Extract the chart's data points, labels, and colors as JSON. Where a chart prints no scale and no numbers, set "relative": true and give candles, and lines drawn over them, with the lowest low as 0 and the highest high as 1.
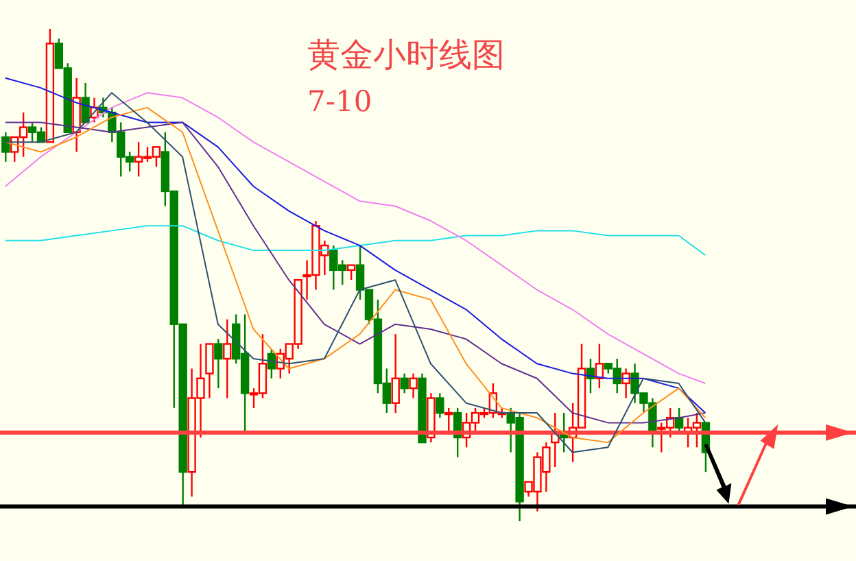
{
  "chart_data": {
    "type": "candlestick",
    "title": "黄金小时线图",
    "subtitle": "7-10",
    "relative": true,
    "categories": [
      null,
      null,
      null,
      null,
      null,
      null,
      null,
      null,
      null,
      null,
      null,
      null,
      null,
      null,
      null,
      null,
      null,
      null,
      null,
      null,
      null,
      null,
      null,
      null,
      null,
      null,
      null,
      null,
      null,
      null,
      null,
      null,
      null,
      null,
      null,
      null,
      null,
      null,
      null,
      null,
      null,
      null,
      null,
      null,
      null,
      null,
      null,
      null,
      null,
      null,
      null,
      null,
      null,
      null,
      null,
      null,
      null,
      null,
      null,
      null,
      null,
      null,
      null,
      null,
      null,
      null,
      null,
      null,
      null,
      null,
      null,
      null,
      null,
      null,
      null,
      null,
      null,
      null,
      null,
      null
    ],
    "ohlc": [
      [
        0.78,
        0.79,
        0.73,
        0.75
      ],
      [
        0.75,
        0.78,
        0.73,
        0.78
      ],
      [
        0.78,
        0.83,
        0.74,
        0.8
      ],
      [
        0.8,
        0.81,
        0.77,
        0.79
      ],
      [
        0.79,
        0.8,
        0.77,
        0.77
      ],
      [
        0.77,
        1.0,
        0.77,
        0.97
      ],
      [
        0.97,
        0.98,
        0.92,
        0.92
      ],
      [
        0.92,
        0.93,
        0.79,
        0.79
      ],
      [
        0.79,
        0.9,
        0.75,
        0.86
      ],
      [
        0.86,
        0.89,
        0.81,
        0.81
      ],
      [
        0.82,
        0.86,
        0.81,
        0.84
      ],
      [
        0.84,
        0.86,
        0.82,
        0.83
      ],
      [
        0.83,
        0.84,
        0.77,
        0.79
      ],
      [
        0.79,
        0.81,
        0.7,
        0.74
      ],
      [
        0.74,
        0.75,
        0.71,
        0.73
      ],
      [
        0.73,
        0.77,
        0.7,
        0.74
      ],
      [
        0.74,
        0.76,
        0.73,
        0.74
      ],
      [
        0.74,
        0.76,
        0.72,
        0.76
      ],
      [
        0.75,
        0.79,
        0.64,
        0.67
      ],
      [
        0.67,
        0.67,
        0.23,
        0.4
      ],
      [
        0.4,
        0.4,
        0.03,
        0.1
      ],
      [
        0.1,
        0.31,
        0.05,
        0.25
      ],
      [
        0.25,
        0.36,
        0.17,
        0.29
      ],
      [
        0.3,
        0.36,
        0.25,
        0.36
      ],
      [
        0.36,
        0.37,
        0.27,
        0.33
      ],
      [
        0.33,
        0.41,
        0.25,
        0.36
      ],
      [
        0.4,
        0.42,
        0.32,
        0.33
      ],
      [
        0.34,
        0.42,
        0.18,
        0.26
      ],
      [
        0.26,
        0.27,
        0.23,
        0.26
      ],
      [
        0.26,
        0.38,
        0.25,
        0.32
      ],
      [
        0.34,
        0.35,
        0.29,
        0.31
      ],
      [
        0.31,
        0.35,
        0.29,
        0.34
      ],
      [
        0.33,
        0.36,
        0.3,
        0.36
      ],
      [
        0.36,
        0.49,
        0.35,
        0.49
      ],
      [
        0.5,
        0.53,
        0.45,
        0.5
      ],
      [
        0.5,
        0.61,
        0.47,
        0.6
      ],
      [
        0.54,
        0.57,
        0.5,
        0.56
      ],
      [
        0.55,
        0.56,
        0.47,
        0.51
      ],
      [
        0.52,
        0.53,
        0.48,
        0.51
      ],
      [
        0.51,
        0.52,
        0.49,
        0.52
      ],
      [
        0.52,
        0.56,
        0.45,
        0.47
      ],
      [
        0.47,
        0.47,
        0.4,
        0.41
      ],
      [
        0.41,
        0.45,
        0.26,
        0.28
      ],
      [
        0.28,
        0.31,
        0.22,
        0.24
      ],
      [
        0.24,
        0.38,
        0.22,
        0.29
      ],
      [
        0.29,
        0.3,
        0.26,
        0.27
      ],
      [
        0.27,
        0.3,
        0.25,
        0.29
      ],
      [
        0.29,
        0.3,
        0.16,
        0.16
      ],
      [
        0.17,
        0.26,
        0.16,
        0.25
      ],
      [
        0.25,
        0.26,
        0.21,
        0.22
      ],
      [
        0.22,
        0.23,
        0.18,
        0.22
      ],
      [
        0.22,
        0.23,
        0.13,
        0.17
      ],
      [
        0.17,
        0.22,
        0.15,
        0.2
      ],
      [
        0.2,
        0.23,
        0.18,
        0.22
      ],
      [
        0.22,
        0.23,
        0.21,
        0.22
      ],
      [
        0.22,
        0.28,
        0.21,
        0.26
      ],
      [
        0.22,
        0.23,
        0.21,
        0.22
      ],
      [
        0.22,
        0.23,
        0.14,
        0.2
      ],
      [
        0.21,
        0.22,
        0.0,
        0.04
      ],
      [
        0.06,
        0.08,
        0.05,
        0.08
      ],
      [
        0.06,
        0.14,
        0.02,
        0.13
      ],
      [
        0.1,
        0.16,
        0.06,
        0.15
      ],
      [
        0.16,
        0.22,
        0.11,
        0.18
      ],
      [
        0.18,
        0.22,
        0.14,
        0.17
      ],
      [
        0.17,
        0.24,
        0.12,
        0.19
      ],
      [
        0.19,
        0.36,
        0.19,
        0.31
      ],
      [
        0.31,
        0.33,
        0.26,
        0.29
      ],
      [
        0.29,
        0.36,
        0.27,
        0.32
      ],
      [
        0.32,
        0.32,
        0.3,
        0.31
      ],
      [
        0.31,
        0.33,
        0.26,
        0.28
      ],
      [
        0.28,
        0.31,
        0.25,
        0.3
      ],
      [
        0.3,
        0.32,
        0.24,
        0.26
      ],
      [
        0.26,
        0.26,
        0.22,
        0.24
      ],
      [
        0.24,
        0.25,
        0.15,
        0.18
      ],
      [
        0.19,
        0.2,
        0.14,
        0.19
      ],
      [
        0.19,
        0.23,
        0.17,
        0.21
      ],
      [
        0.21,
        0.23,
        0.18,
        0.19
      ],
      [
        0.18,
        0.21,
        0.15,
        0.19
      ],
      [
        0.19,
        0.22,
        0.15,
        0.2
      ],
      [
        0.2,
        0.2,
        0.1,
        0.14
      ]
    ],
    "series": [
      {
        "type": "line",
        "color": "#22e0e8",
        "values": [
          0.57,
          null,
          null,
          null,
          0.57,
          null,
          null,
          null,
          0.58,
          null,
          null,
          null,
          0.59,
          null,
          null,
          null,
          0.6,
          null,
          null,
          null,
          0.6,
          null,
          null,
          null,
          0.57,
          null,
          null,
          null,
          0.55,
          null,
          null,
          null,
          0.55,
          null,
          null,
          null,
          0.55,
          null,
          null,
          null,
          0.56,
          null,
          null,
          null,
          0.57,
          null,
          null,
          null,
          0.57,
          null,
          null,
          null,
          0.58,
          null,
          null,
          null,
          0.58,
          null,
          null,
          null,
          0.59,
          null,
          null,
          null,
          0.59,
          null,
          null,
          null,
          0.58,
          null,
          null,
          null,
          0.58,
          null,
          null,
          null,
          0.58,
          null,
          null,
          0.54
        ]
      },
      {
        "type": "line",
        "color": "#f080f0",
        "values": [
          0.68,
          null,
          null,
          null,
          0.74,
          null,
          null,
          null,
          0.79,
          null,
          null,
          null,
          0.84,
          null,
          null,
          null,
          0.87,
          null,
          null,
          null,
          0.86,
          null,
          null,
          null,
          0.82,
          null,
          null,
          null,
          0.77,
          null,
          null,
          null,
          0.73,
          null,
          null,
          null,
          0.69,
          null,
          null,
          null,
          0.65,
          null,
          null,
          null,
          0.64,
          null,
          null,
          null,
          0.61,
          null,
          null,
          null,
          0.57,
          null,
          null,
          null,
          0.52,
          null,
          null,
          null,
          0.47,
          null,
          null,
          null,
          0.43,
          null,
          null,
          null,
          0.38,
          null,
          null,
          null,
          0.34,
          null,
          null,
          null,
          0.3,
          null,
          null,
          0.28
        ]
      },
      {
        "type": "line",
        "color": "#1a1ae0",
        "values": [
          0.9,
          null,
          null,
          null,
          0.88,
          null,
          null,
          null,
          0.85,
          null,
          null,
          null,
          0.83,
          null,
          null,
          null,
          0.81,
          null,
          null,
          null,
          0.81,
          null,
          null,
          null,
          0.76,
          null,
          null,
          null,
          0.68,
          null,
          null,
          null,
          0.63,
          null,
          null,
          null,
          0.59,
          null,
          null,
          null,
          0.56,
          null,
          null,
          null,
          0.51,
          null,
          null,
          null,
          0.47,
          null,
          null,
          null,
          0.43,
          null,
          null,
          null,
          0.37,
          null,
          null,
          null,
          0.32,
          null,
          null,
          null,
          0.3,
          null,
          null,
          null,
          0.29,
          null,
          null,
          null,
          0.29,
          null,
          null,
          null,
          0.27,
          null,
          null,
          0.22
        ]
      },
      {
        "type": "line",
        "color": "#603090",
        "values": [
          0.81,
          null,
          null,
          null,
          0.81,
          null,
          null,
          null,
          0.8,
          null,
          null,
          null,
          0.79,
          null,
          null,
          null,
          0.8,
          null,
          null,
          null,
          0.81,
          null,
          null,
          null,
          0.72,
          null,
          null,
          null,
          0.6,
          null,
          null,
          null,
          0.49,
          null,
          null,
          null,
          0.4,
          null,
          null,
          null,
          0.36,
          null,
          null,
          null,
          0.4,
          null,
          null,
          null,
          0.39,
          null,
          null,
          null,
          0.37,
          null,
          null,
          null,
          0.32,
          null,
          null,
          null,
          0.29,
          null,
          null,
          null,
          0.22,
          null,
          null,
          null,
          0.2,
          null,
          null,
          null,
          0.2,
          null,
          null,
          null,
          0.21,
          null,
          null,
          0.22
        ]
      },
      {
        "type": "line",
        "color": "#ff9020",
        "values": [
          0.77,
          null,
          null,
          null,
          0.75,
          null,
          null,
          null,
          0.78,
          null,
          null,
          null,
          0.82,
          null,
          null,
          null,
          0.84,
          null,
          null,
          null,
          0.79,
          null,
          null,
          null,
          0.59,
          null,
          null,
          null,
          0.39,
          null,
          null,
          null,
          0.31,
          null,
          null,
          null,
          0.33,
          null,
          null,
          null,
          0.38,
          null,
          null,
          null,
          0.47,
          null,
          null,
          null,
          0.45,
          null,
          null,
          null,
          0.32,
          null,
          null,
          null,
          0.23,
          null,
          null,
          null,
          0.21,
          null,
          null,
          null,
          0.17,
          null,
          null,
          null,
          0.16,
          null,
          null,
          null,
          0.22,
          null,
          null,
          null,
          0.27,
          null,
          null,
          0.21
        ]
      },
      {
        "type": "line",
        "color": "#305070",
        "values": [
          0.77,
          null,
          null,
          null,
          0.77,
          null,
          null,
          null,
          0.79,
          null,
          null,
          null,
          0.87,
          null,
          null,
          null,
          0.81,
          null,
          null,
          null,
          0.74,
          null,
          null,
          null,
          0.4,
          null,
          null,
          null,
          0.33,
          null,
          null,
          null,
          0.32,
          null,
          null,
          null,
          0.33,
          null,
          null,
          null,
          0.47,
          null,
          null,
          null,
          0.49,
          null,
          null,
          null,
          0.32,
          null,
          null,
          null,
          0.24,
          null,
          null,
          null,
          0.22,
          null,
          null,
          null,
          0.22,
          null,
          null,
          null,
          0.14,
          null,
          null,
          null,
          0.15,
          null,
          null,
          null,
          0.29,
          null,
          null,
          null,
          0.28,
          null,
          null,
          0.2
        ]
      }
    ],
    "ref_lines": [
      {
        "axis": "y",
        "value": 0.18,
        "color": "#ff4040"
      },
      {
        "axis": "y",
        "value": 0.03,
        "color": "#000000"
      }
    ]
  }
}
